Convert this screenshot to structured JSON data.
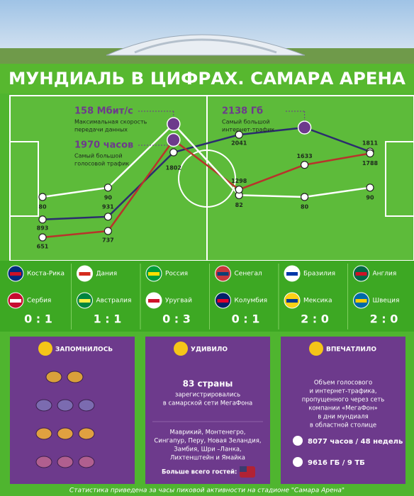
{
  "header": {
    "title": "МУНДИАЛЬ В ЦИФРАХ. САМАРА АРЕНА"
  },
  "chart_data": {
    "type": "line",
    "series": [
      {
        "color": "#ffffff",
        "values": [
          80,
          90,
          158,
          82,
          80,
          90
        ],
        "value_labels": [
          "80",
          "90",
          "158 Мбит/с",
          "82",
          "80",
          "90"
        ],
        "note": [
          "Максимальная скорость",
          "передачи данных"
        ]
      },
      {
        "color": "#2b2d6e",
        "values": [
          893,
          931,
          1802,
          2041,
          2138,
          1811
        ],
        "value_labels": [
          "893",
          "931",
          "1802",
          "2041",
          "2138 Гб",
          "1811"
        ],
        "note": [
          "Самый большой",
          "интернет-трафик"
        ]
      },
      {
        "color": "#b8332b",
        "values": [
          651,
          737,
          1970,
          1298,
          1633,
          1788
        ],
        "value_labels": [
          "651",
          "737",
          "1970 часов",
          "1298",
          "1633",
          "1788"
        ],
        "note": [
          "Самый большой",
          "голосовой трафик"
        ]
      }
    ]
  },
  "matches": [
    {
      "team1": "Коста-Рика",
      "team2": "Сербия",
      "score": "0 : 1"
    },
    {
      "team1": "Дания",
      "team2": "Австралия",
      "score": "1 : 1"
    },
    {
      "team1": "Россия",
      "team2": "Уругвай",
      "score": "0 : 3"
    },
    {
      "team1": "Сенегал",
      "team2": "Колумбия",
      "score": "0 : 1"
    },
    {
      "team1": "Бразилия",
      "team2": "Мексика",
      "score": "2 : 0"
    },
    {
      "team1": "Англия",
      "team2": "Швеция",
      "score": "2 : 0"
    }
  ],
  "panels": [
    {
      "title": "ЗАПОМНИЛОСЬ"
    },
    {
      "title": "УДИВИЛО",
      "count": "83 страны",
      "count_lines": [
        "зарегистрировались",
        "в самарской сети МегаФона"
      ],
      "countries": [
        "Маврикий, Монтенегро,",
        "Сингапур, Перу, Новая Зеландия,",
        "Замбия, Шри –Ланка,",
        "Лихтенштейн и Ямайка"
      ],
      "guests": "Больше всего гостей:"
    },
    {
      "title": "ВПЕЧАТЛИЛО",
      "lines": [
        "Объем голосового",
        "и интернет-трафика,",
        "пропущенного через сеть",
        "компании «МегаФон»",
        "в дни мундиаля",
        "в областной столице"
      ],
      "voice": "8077 часов / 48 недель",
      "data": "9616 ГБ / 9 ТБ"
    }
  ],
  "footer": "Статистика приведена за часы пиковой активности на стадионе \"Самара Арена\""
}
